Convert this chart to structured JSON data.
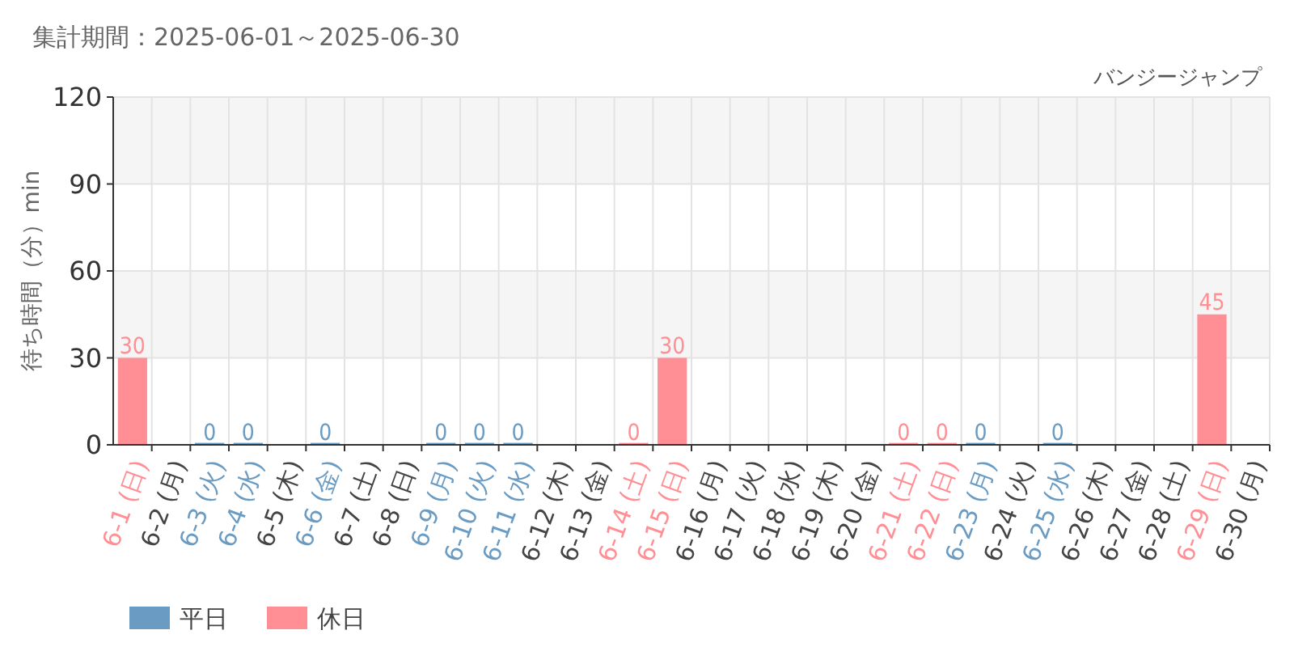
{
  "chart_data": {
    "type": "bar",
    "title": "集計期間：2025-06-01～2025-06-30",
    "subtitle": "バンジージャンプ",
    "ylabel": "待ち時間（分）min",
    "categories": [
      "6-1 (日)",
      "6-2 (月)",
      "6-3 (火)",
      "6-4 (水)",
      "6-5 (木)",
      "6-6 (金)",
      "6-7 (土)",
      "6-8 (日)",
      "6-9 (月)",
      "6-10 (火)",
      "6-11 (水)",
      "6-12 (木)",
      "6-13 (金)",
      "6-14 (土)",
      "6-15 (日)",
      "6-16 (月)",
      "6-17 (火)",
      "6-18 (水)",
      "6-19 (木)",
      "6-20 (金)",
      "6-21 (土)",
      "6-22 (日)",
      "6-23 (月)",
      "6-24 (火)",
      "6-25 (水)",
      "6-26 (木)",
      "6-27 (金)",
      "6-28 (土)",
      "6-29 (日)",
      "6-30 (月)"
    ],
    "series": [
      {
        "name": "平日",
        "color": "#6a9bc3",
        "values": [
          null,
          null,
          0,
          0,
          null,
          0,
          null,
          null,
          0,
          0,
          0,
          null,
          null,
          null,
          null,
          null,
          null,
          null,
          null,
          null,
          null,
          null,
          0,
          null,
          0,
          null,
          null,
          null,
          null,
          null
        ]
      },
      {
        "name": "休日",
        "color": "#ff8f94",
        "values": [
          30,
          null,
          null,
          null,
          null,
          null,
          null,
          null,
          null,
          null,
          null,
          null,
          null,
          0,
          30,
          null,
          null,
          null,
          null,
          null,
          0,
          0,
          null,
          null,
          null,
          null,
          null,
          null,
          45,
          null
        ]
      }
    ],
    "ylim": [
      0,
      120
    ],
    "yticks": [
      0,
      30,
      60,
      90,
      120
    ],
    "grid": true,
    "legend": "bottom left",
    "data_labels": true
  }
}
